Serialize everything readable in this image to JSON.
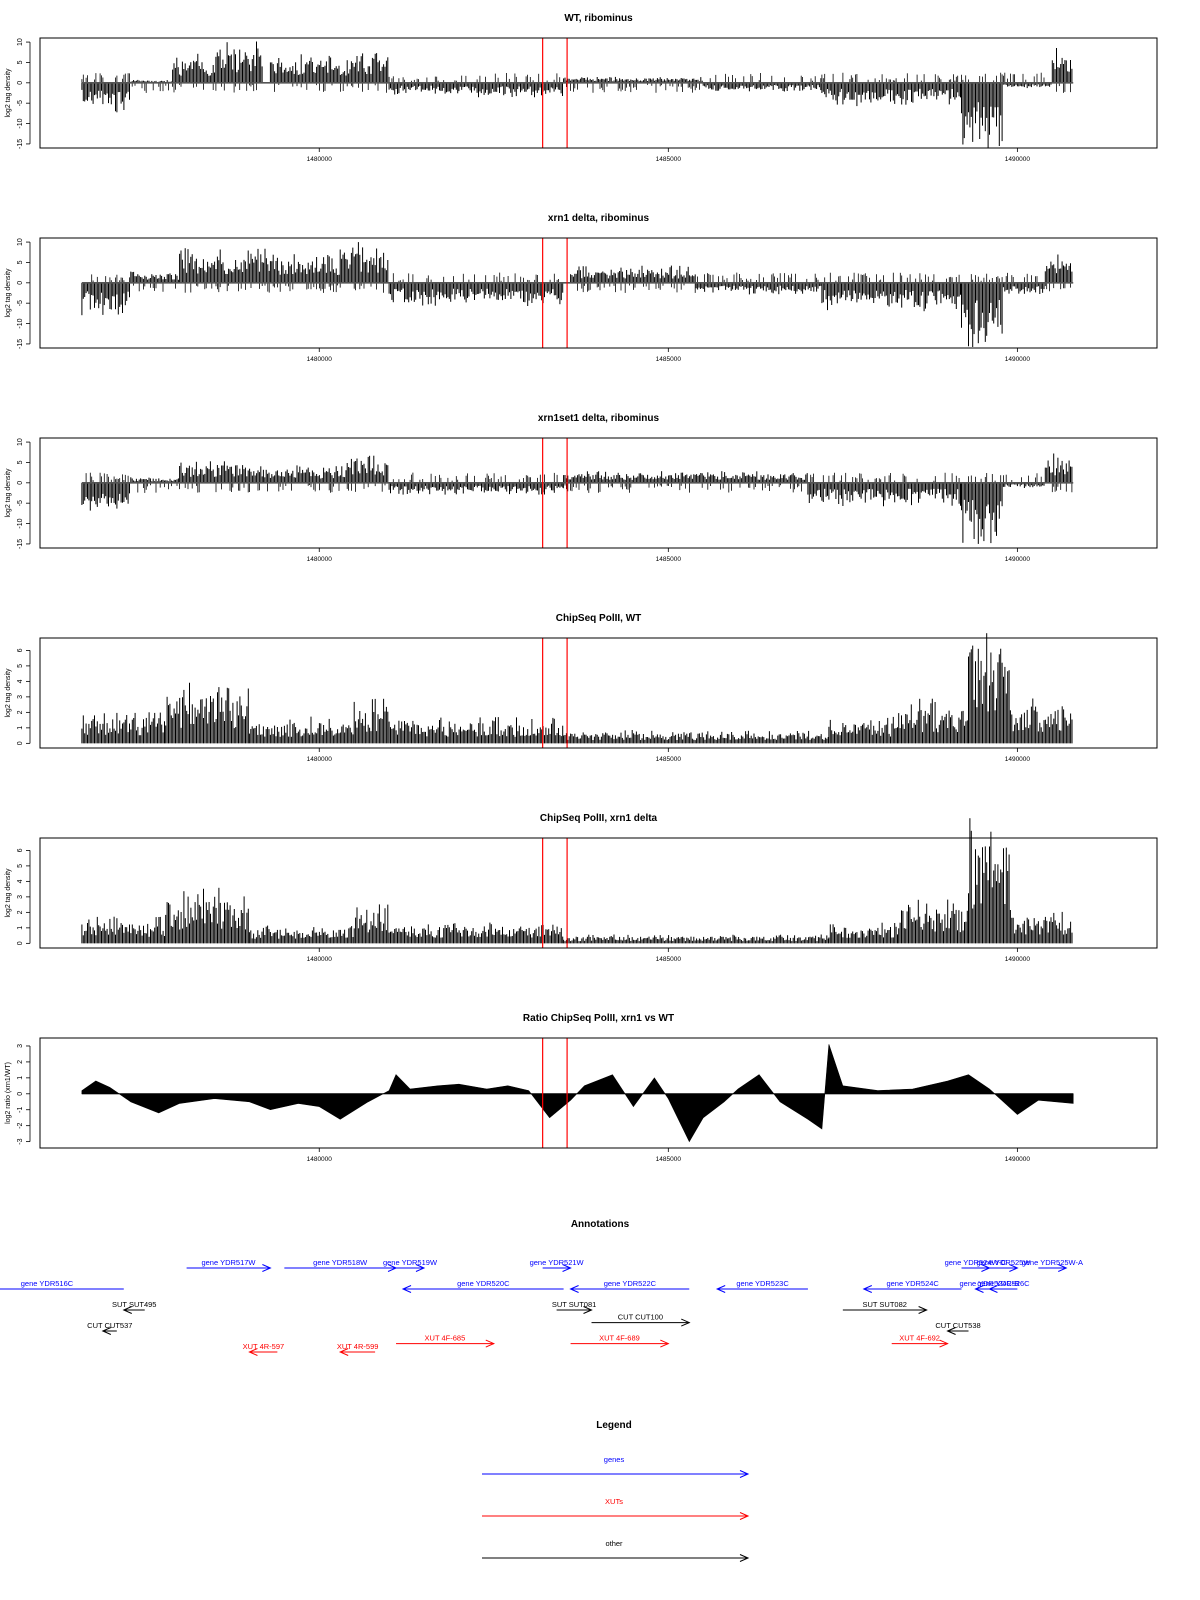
{
  "chart_data": [
    {
      "type": "bar",
      "title": "WT, ribominus",
      "ylabel": "log2 tag density",
      "ylim": [
        -16,
        11
      ],
      "yticks": [
        -15,
        -10,
        -5,
        0,
        5,
        10
      ],
      "xlim": [
        1476000,
        1492000
      ],
      "xticks": [
        1480000,
        1485000,
        1490000
      ],
      "xtick_labels": [
        "1480000",
        "1485000",
        "1490000"
      ],
      "markers_x": [
        1483200,
        1483550
      ],
      "series_segments": [
        {
          "x0": 1476600,
          "x1": 1477300,
          "v": -5
        },
        {
          "x0": 1477300,
          "x1": 1477900,
          "v": 0.5
        },
        {
          "x0": 1477900,
          "x1": 1478500,
          "v": 5
        },
        {
          "x0": 1478500,
          "x1": 1479200,
          "v": 7
        },
        {
          "x0": 1479300,
          "x1": 1480400,
          "v": 5
        },
        {
          "x0": 1480400,
          "x1": 1481000,
          "v": 6
        },
        {
          "x0": 1481000,
          "x1": 1482000,
          "v": -2
        },
        {
          "x0": 1482000,
          "x1": 1483500,
          "v": -2.5
        },
        {
          "x0": 1483500,
          "x1": 1485500,
          "v": 1
        },
        {
          "x0": 1485500,
          "x1": 1487200,
          "v": -1.5
        },
        {
          "x0": 1487200,
          "x1": 1489200,
          "v": -4
        },
        {
          "x0": 1489200,
          "x1": 1489800,
          "v": -11
        },
        {
          "x0": 1489800,
          "x1": 1490500,
          "v": -1
        },
        {
          "x0": 1490500,
          "x1": 1490800,
          "v": 6
        }
      ]
    },
    {
      "type": "bar",
      "title": "xrn1 delta, ribominus",
      "ylabel": "log2 tag density",
      "ylim": [
        -16,
        11
      ],
      "yticks": [
        -15,
        -10,
        -5,
        0,
        5,
        10
      ],
      "xlim": [
        1476000,
        1492000
      ],
      "xticks": [
        1480000,
        1485000,
        1490000
      ],
      "xtick_labels": [
        "1480000",
        "1485000",
        "1490000"
      ],
      "markers_x": [
        1483200,
        1483550
      ],
      "series_segments": [
        {
          "x0": 1476600,
          "x1": 1477300,
          "v": -6
        },
        {
          "x0": 1477300,
          "x1": 1478000,
          "v": 2
        },
        {
          "x0": 1478000,
          "x1": 1479300,
          "v": 6
        },
        {
          "x0": 1479300,
          "x1": 1480300,
          "v": 5
        },
        {
          "x0": 1480300,
          "x1": 1481000,
          "v": 7
        },
        {
          "x0": 1481000,
          "x1": 1483500,
          "v": -4
        },
        {
          "x0": 1483600,
          "x1": 1485400,
          "v": 3
        },
        {
          "x0": 1485400,
          "x1": 1487200,
          "v": -2
        },
        {
          "x0": 1487200,
          "x1": 1489200,
          "v": -5
        },
        {
          "x0": 1489200,
          "x1": 1489800,
          "v": -12
        },
        {
          "x0": 1489800,
          "x1": 1490400,
          "v": -2
        },
        {
          "x0": 1490400,
          "x1": 1490800,
          "v": 6
        }
      ]
    },
    {
      "type": "bar",
      "title": "xrn1set1 delta, ribominus",
      "ylabel": "log2 tag density",
      "ylim": [
        -16,
        11
      ],
      "yticks": [
        -15,
        -10,
        -5,
        0,
        5,
        10
      ],
      "xlim": [
        1476000,
        1492000
      ],
      "xticks": [
        1480000,
        1485000,
        1490000
      ],
      "xtick_labels": [
        "1480000",
        "1485000",
        "1490000"
      ],
      "markers_x": [
        1483200,
        1483550
      ],
      "series_segments": [
        {
          "x0": 1476600,
          "x1": 1477300,
          "v": -5
        },
        {
          "x0": 1477300,
          "x1": 1478000,
          "v": 1
        },
        {
          "x0": 1478000,
          "x1": 1479200,
          "v": 4
        },
        {
          "x0": 1479200,
          "x1": 1480400,
          "v": 3
        },
        {
          "x0": 1480400,
          "x1": 1481000,
          "v": 5
        },
        {
          "x0": 1481000,
          "x1": 1483500,
          "v": -2
        },
        {
          "x0": 1483500,
          "x1": 1487000,
          "v": 2
        },
        {
          "x0": 1487000,
          "x1": 1489200,
          "v": -4
        },
        {
          "x0": 1489200,
          "x1": 1489800,
          "v": -11
        },
        {
          "x0": 1489800,
          "x1": 1490400,
          "v": -1
        },
        {
          "x0": 1490400,
          "x1": 1490800,
          "v": 5
        }
      ]
    },
    {
      "type": "bar",
      "title": "ChipSeq PolII, WT",
      "ylabel": "log2 tag density",
      "ylim": [
        -0.3,
        6.8
      ],
      "yticks": [
        0,
        1,
        2,
        3,
        4,
        5,
        6
      ],
      "xlim": [
        1476000,
        1492000
      ],
      "xticks": [
        1480000,
        1485000,
        1490000
      ],
      "xtick_labels": [
        "1480000",
        "1485000",
        "1490000"
      ],
      "markers_x": [
        1483200,
        1483550
      ],
      "series_segments": [
        {
          "x0": 1476600,
          "x1": 1477800,
          "v": 1.5
        },
        {
          "x0": 1477800,
          "x1": 1479000,
          "v": 2.8
        },
        {
          "x0": 1479000,
          "x1": 1480500,
          "v": 1.2
        },
        {
          "x0": 1480500,
          "x1": 1481000,
          "v": 2
        },
        {
          "x0": 1481000,
          "x1": 1483500,
          "v": 1.2
        },
        {
          "x0": 1483500,
          "x1": 1487300,
          "v": 0.6
        },
        {
          "x0": 1487300,
          "x1": 1488300,
          "v": 1.2
        },
        {
          "x0": 1488300,
          "x1": 1489300,
          "v": 2
        },
        {
          "x0": 1489300,
          "x1": 1489900,
          "v": 5.8
        },
        {
          "x0": 1489900,
          "x1": 1490800,
          "v": 2
        }
      ]
    },
    {
      "type": "bar",
      "title": "ChipSeq PolII, xrn1 delta",
      "ylabel": "log2 tag density",
      "ylim": [
        -0.3,
        6.8
      ],
      "yticks": [
        0,
        1,
        2,
        3,
        4,
        5,
        6
      ],
      "xlim": [
        1476000,
        1492000
      ],
      "xticks": [
        1480000,
        1485000,
        1490000
      ],
      "xtick_labels": [
        "1480000",
        "1485000",
        "1490000"
      ],
      "markers_x": [
        1483200,
        1483550
      ],
      "series_segments": [
        {
          "x0": 1476600,
          "x1": 1477800,
          "v": 1.2
        },
        {
          "x0": 1477800,
          "x1": 1479000,
          "v": 2.5
        },
        {
          "x0": 1479000,
          "x1": 1480500,
          "v": 0.8
        },
        {
          "x0": 1480500,
          "x1": 1481000,
          "v": 1.8
        },
        {
          "x0": 1481000,
          "x1": 1483500,
          "v": 1
        },
        {
          "x0": 1483500,
          "x1": 1487300,
          "v": 0.4
        },
        {
          "x0": 1487300,
          "x1": 1488300,
          "v": 1
        },
        {
          "x0": 1488300,
          "x1": 1489300,
          "v": 2
        },
        {
          "x0": 1489300,
          "x1": 1489900,
          "v": 5.8
        },
        {
          "x0": 1489900,
          "x1": 1490800,
          "v": 1.6
        }
      ]
    },
    {
      "type": "area",
      "title": "Ratio ChipSeq PolII, xrn1 vs WT",
      "ylabel": "log2 ratio (xrn1/WT)",
      "ylim": [
        -3.4,
        3.5
      ],
      "yticks": [
        -3,
        -2,
        -1,
        0,
        1,
        2,
        3
      ],
      "xlim": [
        1476000,
        1492000
      ],
      "xticks": [
        1480000,
        1485000,
        1490000
      ],
      "xtick_labels": [
        "1480000",
        "1485000",
        "1490000"
      ],
      "markers_x": [
        1483200,
        1483550
      ],
      "x": [
        1476600,
        1476800,
        1477000,
        1477300,
        1477700,
        1478000,
        1478500,
        1479000,
        1479300,
        1479700,
        1480000,
        1480300,
        1480700,
        1481000,
        1481100,
        1481300,
        1481700,
        1482000,
        1482400,
        1482700,
        1483000,
        1483300,
        1483600,
        1483800,
        1484200,
        1484500,
        1484800,
        1485000,
        1485300,
        1485500,
        1485800,
        1486000,
        1486300,
        1486600,
        1487000,
        1487200,
        1487300,
        1487500,
        1488000,
        1488500,
        1489000,
        1489300,
        1489600,
        1490000,
        1490300,
        1490800
      ],
      "values": [
        0.2,
        0.8,
        0.4,
        -0.5,
        -1.2,
        -0.6,
        -0.3,
        -0.5,
        -1,
        -0.6,
        -0.8,
        -1.6,
        -0.5,
        0.2,
        1.2,
        0.3,
        0.5,
        0.6,
        0.3,
        0.5,
        0.2,
        -1.5,
        -0.4,
        0.5,
        1.2,
        -0.8,
        1,
        -0.3,
        -3,
        -1.5,
        -0.5,
        0.3,
        1.2,
        -0.5,
        -1.6,
        -2.2,
        3.1,
        0.5,
        0.2,
        0.3,
        0.8,
        1.2,
        0.3,
        -1.3,
        -0.4,
        -0.6
      ]
    }
  ],
  "annotations": {
    "title": "Annotations",
    "items": [
      {
        "label": "gene YDR516C",
        "kind": "gene",
        "dir": "left",
        "x0": 1475000,
        "x1": 1477200,
        "row": 1
      },
      {
        "label": "gene YDR517W",
        "kind": "gene",
        "dir": "right",
        "x0": 1478100,
        "x1": 1479300,
        "row": 0
      },
      {
        "label": "gene YDR518W",
        "kind": "gene",
        "dir": "right",
        "x0": 1479500,
        "x1": 1481100,
        "row": 0
      },
      {
        "label": "gene YDR519W",
        "kind": "gene",
        "dir": "right",
        "x0": 1481100,
        "x1": 1481500,
        "row": 0
      },
      {
        "label": "gene YDR520C",
        "kind": "gene",
        "dir": "left",
        "x0": 1481200,
        "x1": 1483500,
        "row": 1
      },
      {
        "label": "gene YDR521W",
        "kind": "gene",
        "dir": "right",
        "x0": 1483200,
        "x1": 1483600,
        "row": 0
      },
      {
        "label": "gene YDR522C",
        "kind": "gene",
        "dir": "left",
        "x0": 1483600,
        "x1": 1485300,
        "row": 1
      },
      {
        "label": "gene YDR523C",
        "kind": "gene",
        "dir": "left",
        "x0": 1485700,
        "x1": 1487000,
        "row": 1
      },
      {
        "label": "gene YDR524C",
        "kind": "gene",
        "dir": "left",
        "x0": 1487800,
        "x1": 1489200,
        "row": 1
      },
      {
        "label": "gene YDR524W-C",
        "kind": "gene",
        "dir": "right",
        "x0": 1489200,
        "x1": 1489600,
        "row": 0
      },
      {
        "label": "gene YDR525W",
        "kind": "gene",
        "dir": "right",
        "x0": 1489600,
        "x1": 1490000,
        "row": 0
      },
      {
        "label": "gene YDR525W-A",
        "kind": "gene",
        "dir": "right",
        "x0": 1490300,
        "x1": 1490700,
        "row": 0
      },
      {
        "label": "gene YDR524C-B",
        "kind": "gene",
        "dir": "left",
        "x0": 1489400,
        "x1": 1489800,
        "row": 1
      },
      {
        "label": "gene YDR526C",
        "kind": "gene",
        "dir": "left",
        "x0": 1489600,
        "x1": 1490000,
        "row": 1
      },
      {
        "label": "SUT SUT495",
        "kind": "other",
        "dir": "left",
        "x0": 1477200,
        "x1": 1477500,
        "row": 2
      },
      {
        "label": "CUT CUT537",
        "kind": "other",
        "dir": "left",
        "x0": 1476900,
        "x1": 1477100,
        "row": 3
      },
      {
        "label": "SUT SUT081",
        "kind": "other",
        "dir": "right",
        "x0": 1483400,
        "x1": 1483900,
        "row": 2
      },
      {
        "label": "CUT CUT100",
        "kind": "other",
        "dir": "right",
        "x0": 1483900,
        "x1": 1485300,
        "row": 2.6
      },
      {
        "label": "SUT SUT082",
        "kind": "other",
        "dir": "right",
        "x0": 1487500,
        "x1": 1488700,
        "row": 2
      },
      {
        "label": "CUT CUT538",
        "kind": "other",
        "dir": "left",
        "x0": 1489000,
        "x1": 1489300,
        "row": 3
      },
      {
        "label": "XUT 4R-597",
        "kind": "xut",
        "dir": "left",
        "x0": 1479000,
        "x1": 1479400,
        "row": 4
      },
      {
        "label": "XUT 4R-599",
        "kind": "xut",
        "dir": "left",
        "x0": 1480300,
        "x1": 1480800,
        "row": 4
      },
      {
        "label": "XUT 4F-685",
        "kind": "xut",
        "dir": "right",
        "x0": 1481100,
        "x1": 1482500,
        "row": 3.6
      },
      {
        "label": "XUT 4F-689",
        "kind": "xut",
        "dir": "right",
        "x0": 1483600,
        "x1": 1485000,
        "row": 3.6
      },
      {
        "label": "XUT 4F-692",
        "kind": "xut",
        "dir": "right",
        "x0": 1488200,
        "x1": 1489000,
        "row": 3.6
      }
    ]
  },
  "legend": {
    "title": "Legend",
    "entries": [
      {
        "label": "genes",
        "color": "#0000ff"
      },
      {
        "label": "XUTs",
        "color": "#ff0000"
      },
      {
        "label": "other",
        "color": "#000000"
      }
    ]
  },
  "colors": {
    "gene": "#0000ff",
    "xut": "#ff0000",
    "other": "#000000",
    "marker": "#ff0000",
    "axis": "#000000"
  }
}
